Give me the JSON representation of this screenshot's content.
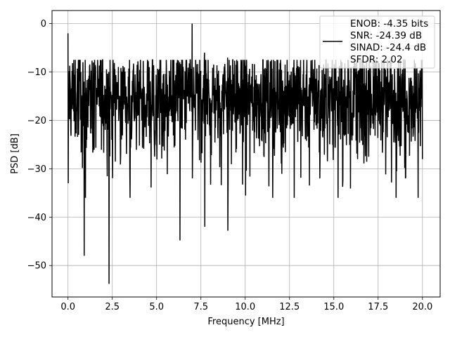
{
  "chart_data": {
    "type": "line",
    "title": "",
    "xlabel": "Frequency [MHz]",
    "ylabel": "PSD [dB]",
    "xlim": [
      -0.9,
      21.0
    ],
    "ylim": [
      -56.5,
      2.7
    ],
    "xticks": [
      0.0,
      2.5,
      5.0,
      7.5,
      10.0,
      12.5,
      15.0,
      17.5,
      20.0
    ],
    "xtick_labels": [
      "0.0",
      "2.5",
      "5.0",
      "7.5",
      "10.0",
      "12.5",
      "15.0",
      "17.5",
      "20.0"
    ],
    "yticks": [
      0,
      -10,
      -20,
      -30,
      -40,
      -50
    ],
    "ytick_labels": [
      "0",
      "−10",
      "−20",
      "−30",
      "−40",
      "−50"
    ],
    "grid": true,
    "legend_position": "top-right",
    "legend_lines": [
      "ENOB: -4.35 bits",
      "SNR: -24.39 dB",
      "SINAD: -24.4 dB",
      "SFDR: 2.02"
    ],
    "series": [
      {
        "color": "#000000",
        "description": "noise-like PSD trace from 0 to 20 MHz, mostly between -10 and -30 dB",
        "envelope": [
          {
            "x": 0.0,
            "y_max": -2.0,
            "y_min": -33.0
          },
          {
            "x": 0.9,
            "y_max": -12.0,
            "y_min": -48.0
          },
          {
            "x": 2.3,
            "y_max": -10.0,
            "y_min": -53.8
          },
          {
            "x": 6.3,
            "y_max": -8.0,
            "y_min": -44.8
          },
          {
            "x": 7.0,
            "y_max": 0.0,
            "y_min": -32.0
          },
          {
            "x": 7.7,
            "y_max": -6.0,
            "y_min": -42.0
          },
          {
            "x": 9.0,
            "y_max": -7.0,
            "y_min": -42.8
          },
          {
            "x": 20.0,
            "y_max": -9.0,
            "y_min": -28.0
          }
        ],
        "baseline": -15.0
      }
    ]
  }
}
